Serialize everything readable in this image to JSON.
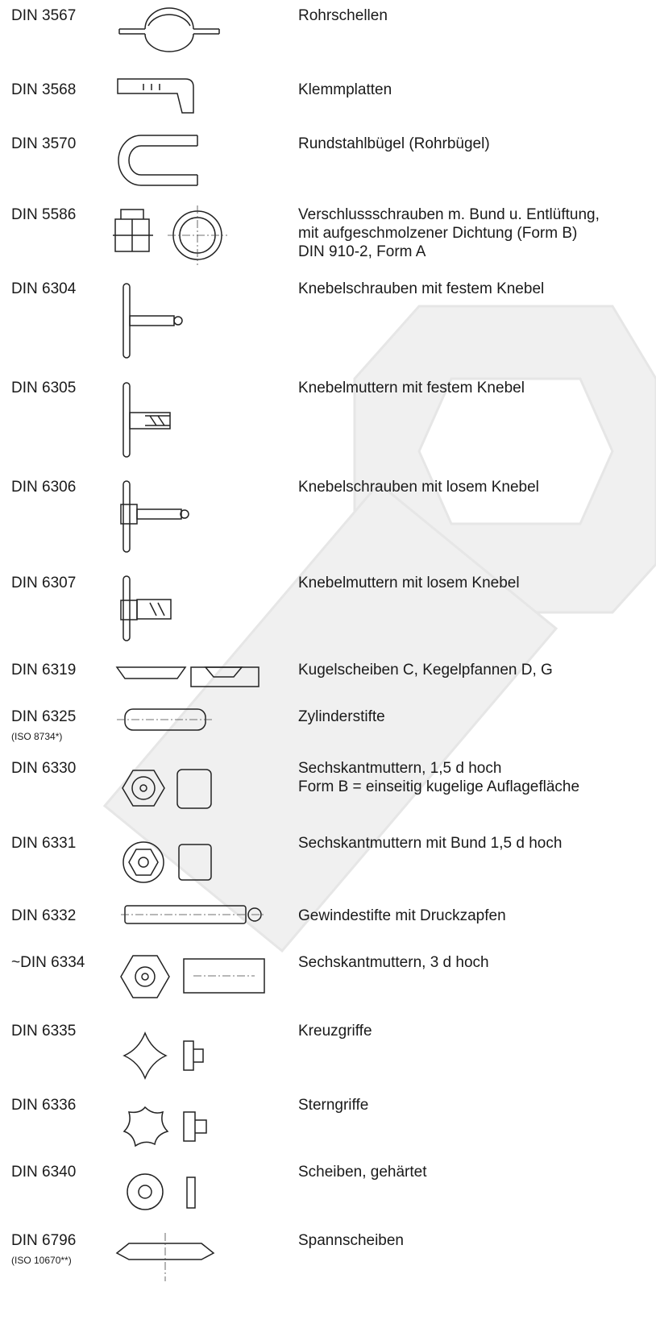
{
  "rows": [
    {
      "code": "DIN 3567",
      "description": [
        "Rohrschellen"
      ]
    },
    {
      "code": "DIN 3568",
      "description": [
        "Klemmplatten"
      ]
    },
    {
      "code": "DIN 3570",
      "description": [
        "Rundstahlbügel (Rohrbügel)"
      ]
    },
    {
      "code": "DIN 5586",
      "description": [
        "Verschlussschrauben m. Bund u. Entlüftung,",
        "mit aufgeschmolzener Dichtung (Form B)",
        "DIN 910-2, Form A"
      ]
    },
    {
      "code": "DIN 6304",
      "description": [
        "Knebelschrauben mit festem Knebel"
      ]
    },
    {
      "code": "DIN 6305",
      "description": [
        "Knebelmuttern mit festem Knebel"
      ]
    },
    {
      "code": "DIN 6306",
      "description": [
        "Knebelschrauben mit losem Knebel"
      ]
    },
    {
      "code": "DIN 6307",
      "description": [
        "Knebelmuttern mit losem Knebel"
      ]
    },
    {
      "code": "DIN 6319",
      "description": [
        "Kugelscheiben C, Kegelpfannen D, G"
      ]
    },
    {
      "code": "DIN 6325",
      "note": "(ISO 8734*)",
      "description": [
        "Zylinderstifte"
      ]
    },
    {
      "code": "DIN 6330",
      "description": [
        "Sechskantmuttern, 1,5 d hoch",
        "Form B = einseitig kugelige Auflagefläche"
      ]
    },
    {
      "code": "DIN 6331",
      "description": [
        "Sechskantmuttern mit Bund 1,5 d hoch"
      ]
    },
    {
      "code": "DIN 6332",
      "description": [
        "Gewindestifte mit Druckzapfen"
      ]
    },
    {
      "code": "~DIN 6334",
      "description": [
        "Sechskantmuttern, 3 d hoch"
      ]
    },
    {
      "code": "DIN 6335",
      "description": [
        "Kreuzgriffe"
      ]
    },
    {
      "code": "DIN 6336",
      "description": [
        "Sterngriffe"
      ]
    },
    {
      "code": "DIN 6340",
      "description": [
        "Scheiben, gehärtet"
      ]
    },
    {
      "code": "DIN 6796",
      "note": "(ISO 10670**)",
      "description": [
        "Spannscheiben"
      ]
    }
  ]
}
